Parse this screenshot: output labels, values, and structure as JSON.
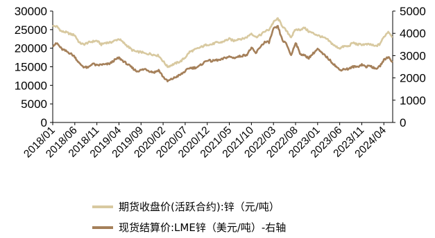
{
  "chart_data": {
    "type": "line",
    "title": "",
    "left_axis": {
      "min": 0,
      "max": 30000,
      "ticks": [
        0,
        5000,
        10000,
        15000,
        20000,
        25000,
        30000
      ]
    },
    "right_axis": {
      "min": 0,
      "max": 5000,
      "ticks": [
        0,
        1000,
        2000,
        3000,
        4000,
        5000
      ]
    },
    "x_range": [
      "2018-01",
      "2024-06"
    ],
    "x_ticks": [
      "2018/01",
      "2018/06",
      "2018/11",
      "2019/04",
      "2019/09",
      "2020/02",
      "2020/07",
      "2020/12",
      "2021/05",
      "2021/10",
      "2022/03",
      "2022/08",
      "2023/01",
      "2023/06",
      "2023/11",
      "2024/04"
    ],
    "grid": false,
    "legend_position": "bottom",
    "series": [
      {
        "name": "期货收盘价(活跃合约):锌（元/吨）",
        "axis": "left",
        "color": "#d8c9a0",
        "x": [
          "2018-01",
          "2018-02",
          "2018-03",
          "2018-04",
          "2018-05",
          "2018-06",
          "2018-07",
          "2018-08",
          "2018-09",
          "2018-10",
          "2018-11",
          "2018-12",
          "2019-01",
          "2019-02",
          "2019-03",
          "2019-04",
          "2019-05",
          "2019-06",
          "2019-07",
          "2019-08",
          "2019-09",
          "2019-10",
          "2019-11",
          "2019-12",
          "2020-01",
          "2020-02",
          "2020-03",
          "2020-04",
          "2020-05",
          "2020-06",
          "2020-07",
          "2020-08",
          "2020-09",
          "2020-10",
          "2020-11",
          "2020-12",
          "2021-01",
          "2021-02",
          "2021-03",
          "2021-04",
          "2021-05",
          "2021-06",
          "2021-07",
          "2021-08",
          "2021-09",
          "2021-10",
          "2021-11",
          "2021-12",
          "2022-01",
          "2022-02",
          "2022-03",
          "2022-04",
          "2022-05",
          "2022-06",
          "2022-07",
          "2022-08",
          "2022-09",
          "2022-10",
          "2022-11",
          "2022-12",
          "2023-01",
          "2023-02",
          "2023-03",
          "2023-04",
          "2023-05",
          "2023-06",
          "2023-07",
          "2023-08",
          "2023-09",
          "2023-10",
          "2023-11",
          "2023-12",
          "2024-01",
          "2024-02",
          "2024-03",
          "2024-04",
          "2024-05",
          "2024-06"
        ],
        "values": [
          26000,
          25800,
          24500,
          24300,
          23800,
          23500,
          21500,
          21000,
          21500,
          21800,
          22000,
          21000,
          21500,
          21500,
          22000,
          22500,
          21500,
          20500,
          19500,
          19000,
          19000,
          18500,
          18500,
          18200,
          18000,
          16500,
          15000,
          15500,
          16000,
          16500,
          17500,
          19000,
          19500,
          20000,
          20500,
          21000,
          21000,
          21500,
          21500,
          22000,
          22500,
          22000,
          22500,
          22500,
          23000,
          24000,
          23000,
          23500,
          24500,
          25000,
          27000,
          28000,
          26000,
          24500,
          23000,
          25000,
          25000,
          25500,
          24500,
          24000,
          23500,
          23000,
          22500,
          21500,
          20500,
          20000,
          20500,
          20500,
          21500,
          21000,
          21000,
          21000,
          21000,
          20500,
          21000,
          23000,
          24500,
          23000
        ]
      },
      {
        "name": "现货结算价:LME锌（美元/吨）-右轴",
        "axis": "right",
        "color": "#a5805a",
        "x": [
          "2018-01",
          "2018-02",
          "2018-03",
          "2018-04",
          "2018-05",
          "2018-06",
          "2018-07",
          "2018-08",
          "2018-09",
          "2018-10",
          "2018-11",
          "2018-12",
          "2019-01",
          "2019-02",
          "2019-03",
          "2019-04",
          "2019-05",
          "2019-06",
          "2019-07",
          "2019-08",
          "2019-09",
          "2019-10",
          "2019-11",
          "2019-12",
          "2020-01",
          "2020-02",
          "2020-03",
          "2020-04",
          "2020-05",
          "2020-06",
          "2020-07",
          "2020-08",
          "2020-09",
          "2020-10",
          "2020-11",
          "2020-12",
          "2021-01",
          "2021-02",
          "2021-03",
          "2021-04",
          "2021-05",
          "2021-06",
          "2021-07",
          "2021-08",
          "2021-09",
          "2021-10",
          "2021-11",
          "2021-12",
          "2022-01",
          "2022-02",
          "2022-03",
          "2022-04",
          "2022-05",
          "2022-06",
          "2022-07",
          "2022-08",
          "2022-09",
          "2022-10",
          "2022-11",
          "2022-12",
          "2023-01",
          "2023-02",
          "2023-03",
          "2023-04",
          "2023-05",
          "2023-06",
          "2023-07",
          "2023-08",
          "2023-09",
          "2023-10",
          "2023-11",
          "2023-12",
          "2024-01",
          "2024-02",
          "2024-03",
          "2024-04",
          "2024-05",
          "2024-06"
        ],
        "values": [
          3450,
          3550,
          3300,
          3200,
          3100,
          2950,
          2650,
          2500,
          2450,
          2650,
          2550,
          2600,
          2600,
          2650,
          2800,
          2900,
          2750,
          2600,
          2450,
          2300,
          2350,
          2400,
          2300,
          2250,
          2350,
          2050,
          1850,
          1950,
          2050,
          2150,
          2300,
          2450,
          2450,
          2500,
          2650,
          2800,
          2750,
          2800,
          2800,
          2900,
          2950,
          2900,
          2950,
          3000,
          3050,
          3350,
          3100,
          3400,
          3600,
          3600,
          4200,
          4300,
          3700,
          3500,
          3000,
          3600,
          3100,
          3000,
          2900,
          3100,
          3300,
          3100,
          2950,
          2750,
          2550,
          2350,
          2400,
          2400,
          2500,
          2500,
          2600,
          2500,
          2550,
          2400,
          2500,
          2800,
          2950,
          2700
        ]
      }
    ]
  },
  "legend": {
    "items": [
      {
        "label": "期货收盘价(活跃合约):锌（元/吨）",
        "color": "#d8c9a0"
      },
      {
        "label": "现货结算价:LME锌（美元/吨）-右轴",
        "color": "#a5805a"
      }
    ]
  }
}
